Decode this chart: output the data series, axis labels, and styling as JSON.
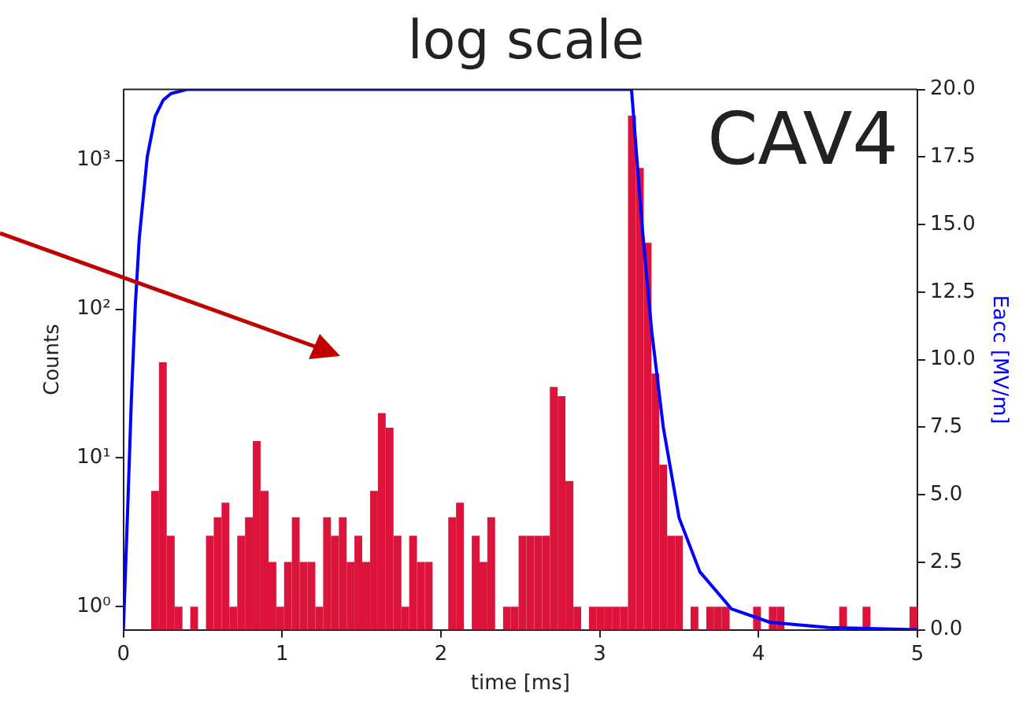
{
  "chart_data": {
    "type": "histogram",
    "title": "log scale",
    "xlabel": "time [ms]",
    "ylabel": "Counts",
    "y2label": "Eacc [MV/m]",
    "annotations": [
      "CAV4"
    ],
    "bins": [
      0.175,
      0.224,
      0.273,
      0.323,
      0.372,
      0.421,
      0.47,
      0.52,
      0.569,
      0.618,
      0.667,
      0.717,
      0.766,
      0.815,
      0.864,
      0.914,
      0.963,
      1.012,
      1.061,
      1.11,
      1.16,
      1.209,
      1.258,
      1.307,
      1.357,
      1.406,
      1.455,
      1.504,
      1.554,
      1.603,
      1.652,
      1.701,
      1.751,
      1.8,
      1.849,
      1.898,
      1.947,
      2.046,
      2.095,
      2.144,
      2.194,
      2.243,
      2.292,
      2.341,
      2.391,
      2.44,
      2.489,
      2.538,
      2.588,
      2.637,
      2.686,
      2.735,
      2.784,
      2.834,
      2.883,
      2.932,
      2.981,
      3.031,
      3.08,
      3.129,
      3.178,
      3.228,
      3.277,
      3.326,
      3.375,
      3.424,
      3.474,
      3.523,
      3.572,
      3.621,
      3.671,
      3.72,
      3.769,
      3.818,
      3.966,
      4.015,
      4.065,
      4.114,
      4.163,
      4.508,
      4.557,
      4.655,
      4.705,
      4.951,
      5.0
    ],
    "series": [
      {
        "color": "#dc143c",
        "values": [
          6,
          44,
          3,
          1,
          null,
          1,
          null,
          3,
          4,
          5,
          1,
          3,
          4,
          13,
          6,
          2,
          1,
          2,
          4,
          2,
          2,
          1,
          4,
          3,
          4,
          2,
          3,
          2,
          6,
          20,
          16,
          3,
          1,
          3,
          2,
          2,
          null,
          4,
          5,
          null,
          3,
          2,
          4,
          null,
          1,
          1,
          3,
          3,
          3,
          3,
          30,
          26,
          7,
          1,
          null,
          1,
          1,
          1,
          1,
          1,
          2000,
          890,
          280,
          37,
          9,
          3,
          3,
          null,
          1,
          null,
          1,
          1,
          1,
          null,
          1,
          null,
          1,
          1,
          null,
          1,
          null,
          1,
          null,
          1
        ]
      },
      {
        "type": "line",
        "axis": "y2",
        "color": "#0000ff",
        "x": [
          0,
          0.03,
          0.05,
          0.075,
          0.1,
          0.15,
          0.2,
          0.25,
          0.3,
          0.4,
          3.2,
          3.266,
          3.327,
          3.4,
          3.5,
          3.63,
          3.83,
          4.07,
          4.44,
          5
        ],
        "values": [
          0,
          5,
          8.5,
          12,
          14.5,
          17.5,
          19,
          19.6,
          19.85,
          20,
          20,
          15,
          11.06,
          7.5,
          4.14,
          2.15,
          0.77,
          0.28,
          0.08,
          0
        ]
      }
    ],
    "log": "y",
    "xlim": [
      0,
      5
    ],
    "xticks": [
      0,
      1,
      2,
      3,
      4,
      5
    ],
    "ylim": [
      0.7,
      3000
    ],
    "yticks": [
      {
        "value": 1,
        "label": "10⁰"
      },
      {
        "value": 10,
        "label": "10¹"
      },
      {
        "value": 100,
        "label": "10²"
      },
      {
        "value": 1000,
        "label": "10³"
      }
    ],
    "y2lim": [
      0,
      20
    ],
    "y2ticks": [
      {
        "value": 0,
        "label": "0.0"
      },
      {
        "value": 2.5,
        "label": "2.5"
      },
      {
        "value": 5,
        "label": "5.0"
      },
      {
        "value": 7.5,
        "label": "7.5"
      },
      {
        "value": 10,
        "label": "10.0"
      },
      {
        "value": 12.5,
        "label": "12.5"
      },
      {
        "value": 15,
        "label": "15.0"
      },
      {
        "value": 17.5,
        "label": "17.5"
      },
      {
        "value": 20,
        "label": "20.0"
      }
    ],
    "grid": false,
    "legend": false
  }
}
